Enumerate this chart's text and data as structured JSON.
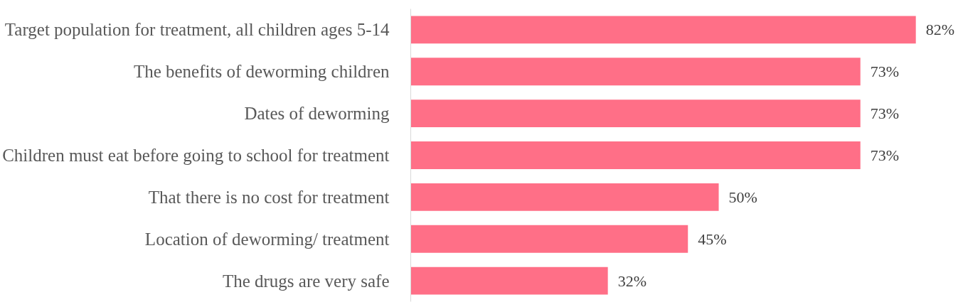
{
  "chart_data": {
    "type": "bar",
    "orientation": "horizontal",
    "grid": false,
    "categories": [
      "Target population for treatment, all children ages 5-14",
      "The benefits of deworming children",
      "Dates of deworming",
      "Children must eat before going to school for treatment",
      "That there is no cost for treatment",
      "Location of deworming/ treatment",
      "The drugs are very safe"
    ],
    "values": [
      82,
      73,
      73,
      73,
      50,
      45,
      32
    ],
    "value_labels": [
      "82%",
      "73%",
      "73%",
      "73%",
      "50%",
      "45%",
      "32%"
    ],
    "color": "#ff6f87"
  }
}
